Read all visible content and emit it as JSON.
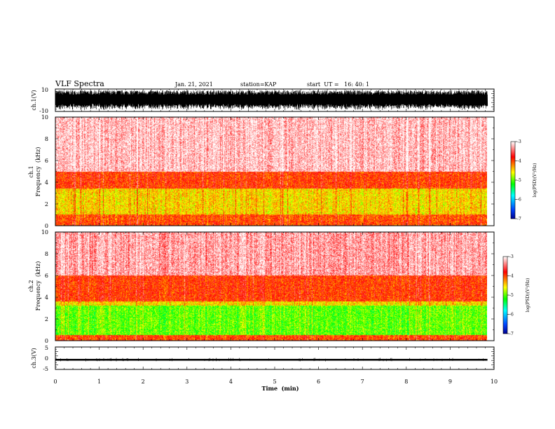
{
  "header": {
    "title": "VLF Spectra",
    "date": "Jan. 21, 2021",
    "station": "station=KAP",
    "start_ut": "start  UT =   16: 40: 1"
  },
  "chart_data": [
    {
      "type": "line",
      "panel": "ch1-waveform",
      "ylabel": "ch.1(V)",
      "ylim": [
        -10,
        10
      ],
      "y_ticks": [
        "10",
        "-10"
      ],
      "xlim": [
        0,
        10
      ],
      "description_values": {
        "typical_amplitude_range": [
          -9,
          9
        ]
      }
    },
    {
      "type": "heatmap",
      "panel": "ch1-spectrogram",
      "ylabel": "ch.1\nFrequency (kHz)",
      "ylabel_lines": [
        "ch.1",
        "Frequency  (kHz)"
      ],
      "ylim": [
        0,
        10
      ],
      "y_ticks": [
        "0",
        "2",
        "4",
        "6",
        "8",
        "10"
      ],
      "xlim": [
        0,
        10
      ],
      "data_end_min": 9.85,
      "colorbar": {
        "label": "log(PSD)(V²/Hz)",
        "ticks": [
          "-3",
          "-4",
          "-5",
          "-6",
          "-7"
        ],
        "range": [
          -7,
          -3
        ],
        "colors": [
          "#000090",
          "#0044ff",
          "#00ffff",
          "#00ff00",
          "#ffff00",
          "#ff0000",
          "#ffffff"
        ]
      },
      "bands": [
        {
          "f": [
            0.0,
            0.5
          ],
          "level": -4.0
        },
        {
          "f": [
            0.5,
            1.0
          ],
          "level": -4.05
        },
        {
          "f": [
            1.0,
            3.4
          ],
          "level": -4.5
        },
        {
          "f": [
            3.4,
            5.0
          ],
          "level": -3.95
        },
        {
          "f": [
            5.0,
            10.0
          ],
          "level": -3.2
        }
      ]
    },
    {
      "type": "heatmap",
      "panel": "ch2-spectrogram",
      "ylabel_lines": [
        "ch.2",
        "Frequency  (kHz)"
      ],
      "ylim": [
        0,
        10
      ],
      "y_ticks": [
        "0",
        "2",
        "4",
        "6",
        "8",
        "10"
      ],
      "xlim": [
        0,
        10
      ],
      "data_end_min": 9.85,
      "colorbar": {
        "label": "log(PSD)(V²/Hz)",
        "ticks": [
          "-3",
          "-4",
          "-5",
          "-6",
          "-7"
        ],
        "range": [
          -7,
          -3
        ]
      },
      "bands": [
        {
          "f": [
            0.0,
            0.5
          ],
          "level": -4.0
        },
        {
          "f": [
            0.5,
            3.2
          ],
          "level": -5.0
        },
        {
          "f": [
            3.2,
            3.6
          ],
          "level": -4.5
        },
        {
          "f": [
            3.6,
            6.0
          ],
          "level": -3.95
        },
        {
          "f": [
            6.0,
            10.0
          ],
          "level": -3.3
        }
      ]
    },
    {
      "type": "line",
      "panel": "ch3-waveform",
      "ylabel": "ch.3(V)",
      "ylim": [
        -5,
        5
      ],
      "y_ticks": [
        "5",
        "0",
        "-5"
      ],
      "xlim": [
        0,
        10
      ],
      "signal_band": [
        -1.1,
        -0.3
      ]
    }
  ],
  "xaxis": {
    "xlabel": "Time  (min)",
    "ticks": [
      "0",
      "1",
      "2",
      "3",
      "4",
      "5",
      "6",
      "7",
      "8",
      "9",
      "10"
    ]
  },
  "colors": {
    "axis": "#000000",
    "waveform": "#000000",
    "background": "#ffffff"
  }
}
